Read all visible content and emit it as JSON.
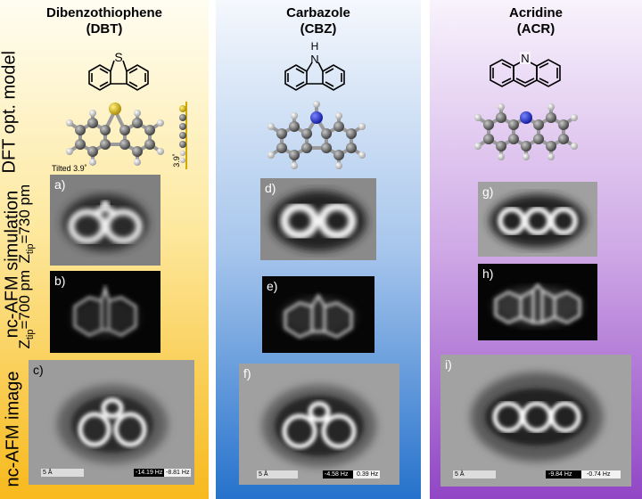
{
  "columns": [
    {
      "title": "Dibenzothiophene",
      "abbrev": "(DBT)"
    },
    {
      "title": "Carbazole",
      "abbrev": "(CBZ)"
    },
    {
      "title": "Acridine",
      "abbrev": "(ACR)"
    }
  ],
  "row_labels": {
    "dft": "DFT opt. model",
    "sim": "nc-AFM simulation",
    "z730_prefix": "Z",
    "z730_sub": "tip",
    "z730_suffix": "=730 pm",
    "z700_prefix": "Z",
    "z700_sub": "tip",
    "z700_suffix": "=700 pm",
    "image": "nc-AFM image"
  },
  "tilt": {
    "label": "Tilted 3.9˚",
    "side_label": "3.9˚"
  },
  "panels": {
    "a": "a)",
    "b": "b)",
    "c": "c)",
    "d": "d)",
    "e": "e)",
    "f": "f)",
    "g": "g)",
    "h": "h)",
    "i": "i)"
  },
  "atoms": {
    "sulfur": "S",
    "nitrogen": "N",
    "hydrogen": "H"
  },
  "scalebars": {
    "dbt": {
      "length": "5 Å",
      "min": "-14.19 Hz",
      "max": "-8.81 Hz"
    },
    "cbz": {
      "length": "5 Å",
      "min": "-4.58 Hz",
      "max": "0.39 Hz"
    },
    "acr": {
      "length": "5 Å",
      "min": "-9.84 Hz",
      "max": "-0.74 Hz"
    }
  },
  "colors": {
    "dbt_top": "#fffbe6",
    "dbt_bottom": "#f7c02a",
    "cbz_top": "#f2f6fd",
    "cbz_bottom": "#2f7cd0",
    "acr_top": "#f6f0fb",
    "acr_bottom": "#9a52c9",
    "sulfur": "#d4b10a",
    "nitrogen": "#1f2fd6",
    "carbon": "#666666",
    "hydrogen": "#dddddd"
  }
}
